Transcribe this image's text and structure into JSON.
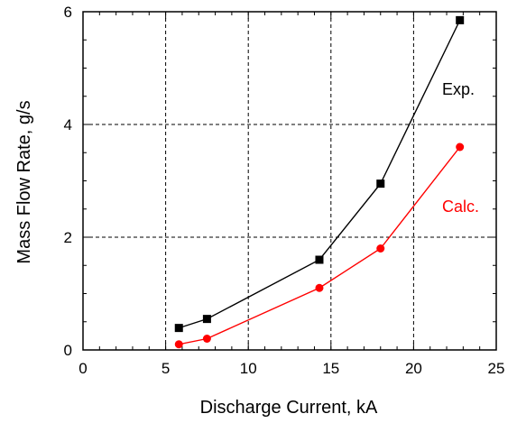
{
  "chart_data": {
    "type": "line",
    "xlabel": "Discharge Current, kA",
    "ylabel": "Mass Flow Rate, g/s",
    "xlim": [
      0,
      25
    ],
    "ylim": [
      0,
      6
    ],
    "xticks": [
      "0",
      "5",
      "10",
      "15",
      "20",
      "25"
    ],
    "yticks": [
      "0",
      "2",
      "4",
      "6"
    ],
    "grid": "dashed, major ticks",
    "legend": "inline labels next to curves (right side)",
    "series": [
      {
        "name": "Exp.",
        "color": "#000000",
        "marker": "square",
        "x": [
          5.8,
          7.5,
          14.3,
          18.0,
          22.8
        ],
        "y": [
          0.39,
          0.55,
          1.6,
          2.95,
          5.85
        ]
      },
      {
        "name": "Calc.",
        "color": "#ff0000",
        "marker": "circle",
        "x": [
          5.8,
          7.5,
          14.3,
          18.0,
          22.8
        ],
        "y": [
          0.1,
          0.2,
          1.1,
          1.8,
          3.6
        ]
      }
    ]
  }
}
